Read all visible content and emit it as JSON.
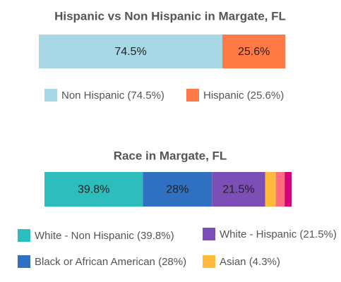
{
  "chart_data": [
    {
      "type": "stacked-bar",
      "title": "Hispanic vs Non Hispanic in Margate, FL",
      "xlim": [
        0,
        100
      ],
      "series": [
        {
          "name": "Non Hispanic (74.5%)",
          "color": "#a8d8e6",
          "values": [
            74.5
          ],
          "value_labels": [
            "74.5%"
          ]
        },
        {
          "name": "Hispanic (25.6%)",
          "color": "#ff7a45",
          "values": [
            25.6
          ],
          "value_labels": [
            "25.6%"
          ]
        }
      ]
    },
    {
      "type": "stacked-bar",
      "title": "Race in Margate, FL",
      "xlim": [
        0,
        100
      ],
      "series": [
        {
          "name": "White - Non Hispanic (39.8%)",
          "color": "#2ebdbd",
          "values": [
            39.8
          ],
          "value_labels": [
            "39.8%"
          ]
        },
        {
          "name": "Black or African American (28%)",
          "color": "#2f70c0",
          "values": [
            28
          ],
          "value_labels": [
            "28%"
          ]
        },
        {
          "name": "White - Hispanic (21.5%)",
          "color": "#7b4fb5",
          "values": [
            21.5
          ],
          "value_labels": [
            "21.5%"
          ]
        },
        {
          "name": "Asian (4.3%)",
          "color": "#ffb93b",
          "values": [
            4.3
          ]
        },
        {
          "name": null,
          "color": "#ff6b7f",
          "values": [
            3.6
          ]
        },
        {
          "name": null,
          "color": "#d4007a",
          "values": [
            2.8
          ]
        }
      ]
    }
  ]
}
